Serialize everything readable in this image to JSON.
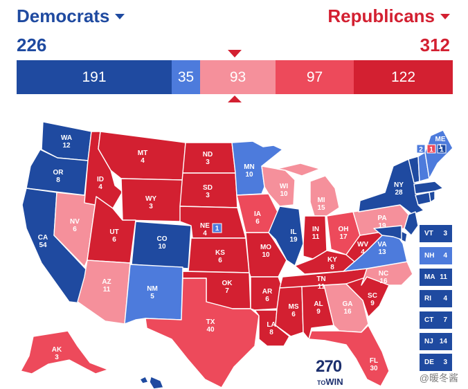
{
  "header": {
    "dem_label": "Democrats",
    "rep_label": "Republicans",
    "dem_total": "226",
    "rep_total": "312",
    "dem_caret_icon": "caret-down-icon",
    "rep_caret_icon": "caret-down-icon"
  },
  "colors": {
    "safe_d": "#1f4aa0",
    "likely_d": "#4d7bdc",
    "tossup_lean_r": "#f5909b",
    "likely_r": "#ed4a5b",
    "safe_r": "#d32031"
  },
  "bar": [
    "191",
    "35",
    "93",
    "97",
    "122"
  ],
  "states": {
    "WA": "12",
    "OR": "8",
    "CA": "54",
    "ID": "4",
    "MT": "4",
    "WY": "3",
    "NV": "6",
    "UT": "6",
    "AZ": "11",
    "CO": "10",
    "NM": "5",
    "ND": "3",
    "SD": "3",
    "NE": "4",
    "KS": "6",
    "OK": "7",
    "TX": "40",
    "MN": "10",
    "IA": "6",
    "MO": "10",
    "AR": "6",
    "LA": "8",
    "WI": "10",
    "IL": "19",
    "MI": "15",
    "IN": "11",
    "OH": "17",
    "KY": "8",
    "TN": "11",
    "MS": "6",
    "AL": "9",
    "GA": "16",
    "FL": "30",
    "SC": "9",
    "NC": "16",
    "VA": "13",
    "WV": "4",
    "PA": "19",
    "NY": "28",
    "ME": "1",
    "AK": "3",
    "HI": ""
  },
  "ne_district": "1",
  "me_districts": [
    "2",
    "1",
    "1"
  ],
  "small_states": [
    {
      "abbr": "VT",
      "ev": "3"
    },
    {
      "abbr": "NH",
      "ev": "4"
    },
    {
      "abbr": "MA",
      "ev": "11"
    },
    {
      "abbr": "RI",
      "ev": "4"
    },
    {
      "abbr": "CT",
      "ev": "7"
    },
    {
      "abbr": "NJ",
      "ev": "14"
    },
    {
      "abbr": "DE",
      "ev": "3"
    }
  ],
  "logo": {
    "number": "270",
    "to": "TO",
    "win": "WIN"
  },
  "watermark": "@暖冬酱"
}
